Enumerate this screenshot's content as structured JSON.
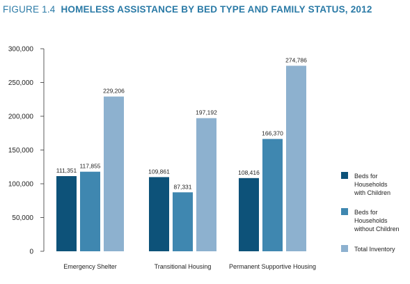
{
  "title": {
    "figure": "FIGURE 1.4",
    "text": "HOMELESS ASSISTANCE BY BED TYPE AND FAMILY STATUS, 2012"
  },
  "chart_data": {
    "type": "bar",
    "title": "FIGURE 1.4 HOMELESS ASSISTANCE BY BED TYPE AND FAMILY STATUS, 2012",
    "categories": [
      "Emergency Shelter",
      "Transitional Housing",
      "Permanent Supportive Housing"
    ],
    "series": [
      {
        "name": "Beds for Households with Children",
        "legend_lines": [
          "Beds for",
          "Households",
          "with Children"
        ],
        "color": "#0d5279",
        "values": [
          111351,
          109861,
          108416
        ],
        "labels": [
          "111,351",
          "109,861",
          "108,416"
        ]
      },
      {
        "name": "Beds for Households without Children",
        "legend_lines": [
          "Beds for",
          "Households",
          "without Children"
        ],
        "color": "#3f87b0",
        "values": [
          117855,
          87331,
          166370
        ],
        "labels": [
          "117,855",
          "87,331",
          "166,370"
        ]
      },
      {
        "name": "Total Inventory",
        "legend_lines": [
          "Total Inventory"
        ],
        "color": "#8db1cf",
        "values": [
          229206,
          197192,
          274786
        ],
        "labels": [
          "229,206",
          "197,192",
          "274,786"
        ]
      }
    ],
    "yticks": [
      0,
      50000,
      100000,
      150000,
      200000,
      250000,
      300000
    ],
    "ytick_labels": [
      "0",
      "50,000",
      "100,000",
      "150,000",
      "200,000",
      "250,000",
      "300,000"
    ],
    "ylim": [
      0,
      300000
    ],
    "grid": false,
    "legend": "right",
    "xlabel": "",
    "ylabel": ""
  }
}
